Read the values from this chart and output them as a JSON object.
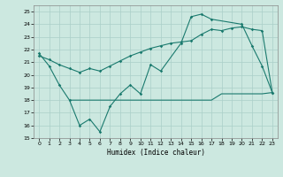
{
  "xlabel": "Humidex (Indice chaleur)",
  "xlim": [
    -0.5,
    23.5
  ],
  "ylim": [
    15,
    25.5
  ],
  "yticks": [
    15,
    16,
    17,
    18,
    19,
    20,
    21,
    22,
    23,
    24,
    25
  ],
  "xticks": [
    0,
    1,
    2,
    3,
    4,
    5,
    6,
    7,
    8,
    9,
    10,
    11,
    12,
    13,
    14,
    15,
    16,
    17,
    18,
    19,
    20,
    21,
    22,
    23
  ],
  "color": "#1a7a6e",
  "bg_color": "#cce8e0",
  "grid_color": "#aacfc8",
  "line1_x": [
    0,
    1,
    2,
    3,
    4,
    5,
    6,
    7,
    8,
    9,
    10,
    11,
    12,
    14,
    15,
    16,
    17,
    20,
    21,
    22,
    23
  ],
  "line1_y": [
    21.7,
    20.7,
    19.2,
    18.0,
    16.0,
    16.5,
    15.5,
    17.5,
    18.5,
    19.2,
    18.5,
    20.8,
    20.3,
    22.5,
    24.6,
    24.8,
    24.4,
    24.0,
    22.3,
    20.7,
    18.6
  ],
  "line2_x": [
    0,
    1,
    2,
    3,
    4,
    5,
    6,
    7,
    8,
    9,
    10,
    11,
    12,
    13,
    14,
    15,
    16,
    17,
    18,
    19,
    20,
    21,
    22,
    23
  ],
  "line2_y": [
    21.5,
    21.2,
    20.8,
    20.5,
    20.2,
    20.5,
    20.3,
    20.7,
    21.1,
    21.5,
    21.8,
    22.1,
    22.3,
    22.5,
    22.6,
    22.7,
    23.2,
    23.6,
    23.5,
    23.7,
    23.8,
    23.6,
    23.5,
    18.6
  ],
  "line3_x": [
    3,
    4,
    5,
    6,
    7,
    8,
    9,
    10,
    11,
    12,
    13,
    14,
    15,
    16,
    17,
    18,
    19,
    20,
    21,
    22,
    23
  ],
  "line3_y": [
    18.0,
    18.0,
    18.0,
    18.0,
    18.0,
    18.0,
    18.0,
    18.0,
    18.0,
    18.0,
    18.0,
    18.0,
    18.0,
    18.0,
    18.0,
    18.5,
    18.5,
    18.5,
    18.5,
    18.5,
    18.6
  ]
}
